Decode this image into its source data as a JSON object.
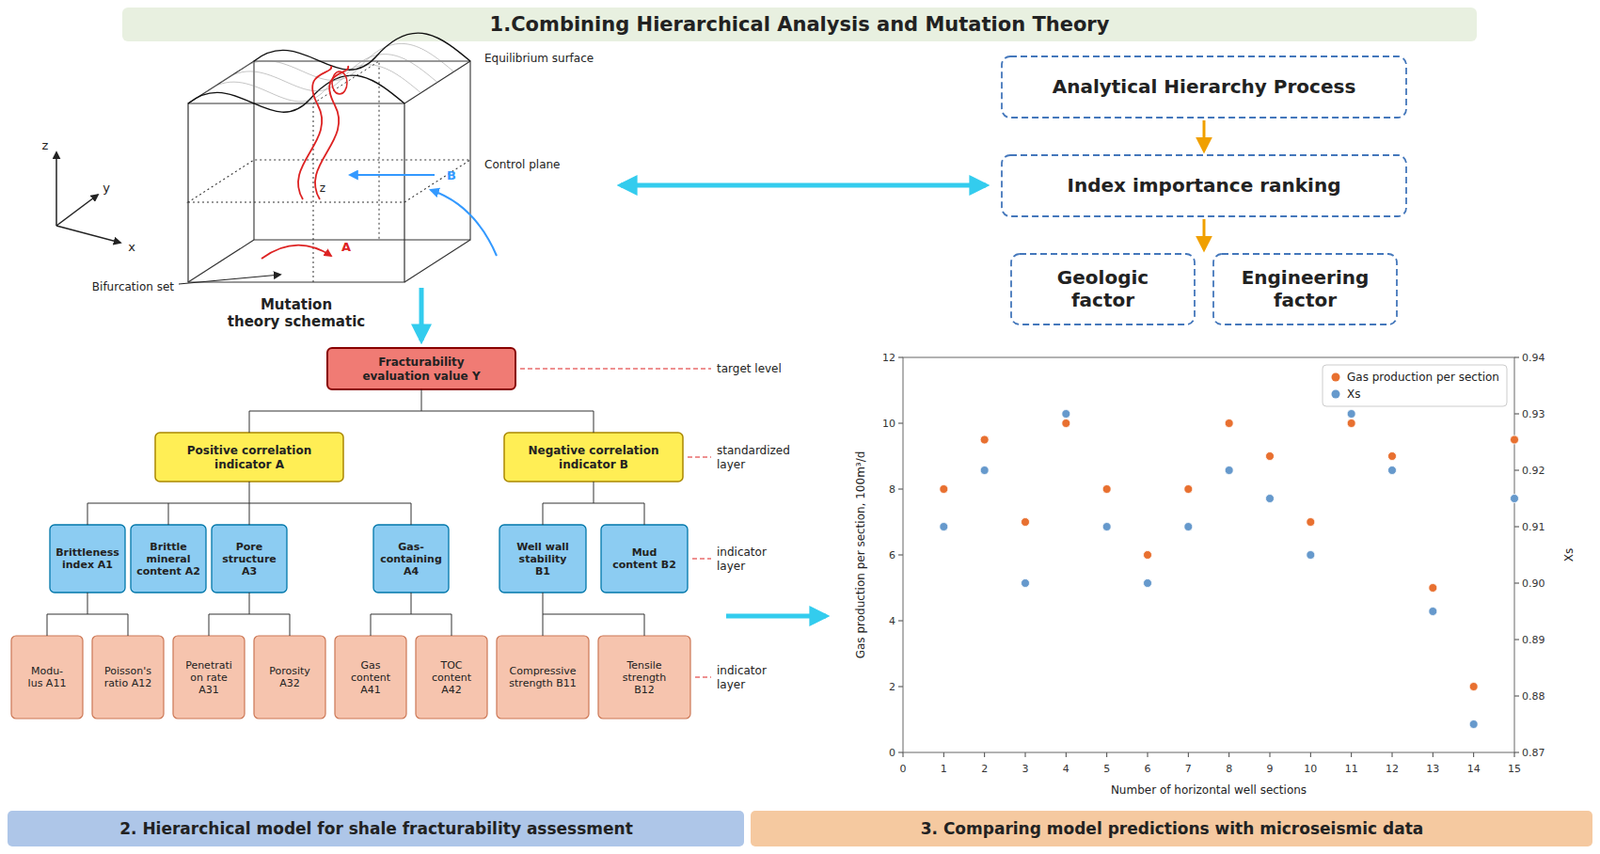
{
  "chart_data": {
    "type": "scatter",
    "title": "1.Combining Hierarchical Analysis and Mutation Theory",
    "x_label": "Number of horizontal well sections",
    "y_label": "Gas production per section, 100m³/d",
    "y2_label": "Xs",
    "x": [
      1,
      2,
      3,
      4,
      5,
      6,
      7,
      8,
      9,
      10,
      11,
      12,
      13,
      14,
      15
    ],
    "series": [
      {
        "name": "Gas production per section",
        "color": "#e87030",
        "values": [
          8.0,
          9.5,
          7.0,
          10.0,
          8.0,
          6.0,
          8.0,
          10.0,
          9.0,
          7.0,
          10.0,
          9.0,
          5.0,
          2.0,
          9.5
        ]
      },
      {
        "name": "Xs",
        "color": "#6699cc",
        "axis": "y2",
        "values": [
          0.91,
          0.92,
          0.9,
          0.93,
          0.91,
          0.9,
          0.91,
          0.92,
          0.915,
          0.905,
          0.93,
          0.92,
          0.895,
          0.875,
          0.915
        ]
      }
    ],
    "xlim": [
      0,
      15
    ],
    "xticks": [
      0,
      1,
      2,
      3,
      4,
      5,
      6,
      7,
      8,
      9,
      10,
      11,
      12,
      13,
      14,
      15
    ],
    "ylim": [
      0,
      12
    ],
    "yticks": [
      0,
      2,
      4,
      6,
      8,
      10,
      12
    ],
    "y2lim": [
      0.87,
      0.94
    ],
    "y2ticks": [
      0.87,
      0.88,
      0.89,
      {
        "value": 0.9,
        "label": "0.90"
      },
      0.91,
      0.92,
      0.93,
      0.94
    ],
    "grid": false,
    "legend": "upper right",
    "annotations": [
      "2. Hierarchical model for shale fracturability assessment",
      "3. Comparing model predictions with microseismic data",
      "Mutation\ntheory schematic",
      "Equilibrium surface",
      "Bifurcation set",
      "Control plane",
      "B",
      "A",
      "z",
      "x",
      "y",
      "z",
      "Analytical Hierarchy Process",
      "Index importance ranking",
      "Geologic\nfactor",
      "Engineering\nfactor",
      "Fracturability\nevaluation value Y",
      "Positive correlation\nindicator A",
      "Negative correlation\nindicator B",
      "Brittleness\nindex A1",
      "Brittle\nmineral\ncontent A2",
      "Pore\nstructure\nA3",
      "Gas-\ncontaining\nA4",
      "Well wall\nstability\nB1",
      "Mud\ncontent B2",
      "Modu-\nlus A11",
      "Poisson's\nratio A12",
      "Penetrati\non rate\nA31",
      "Porosity\nA32",
      "Gas\ncontent\nA41",
      "TOC\ncontent\nA42",
      "Compressive\nstrength B11",
      "Tensile\nstrength\nB12",
      "target level",
      "standardized\nlayer",
      "indicator\nlayer",
      "indicator\nlayer"
    ]
  }
}
